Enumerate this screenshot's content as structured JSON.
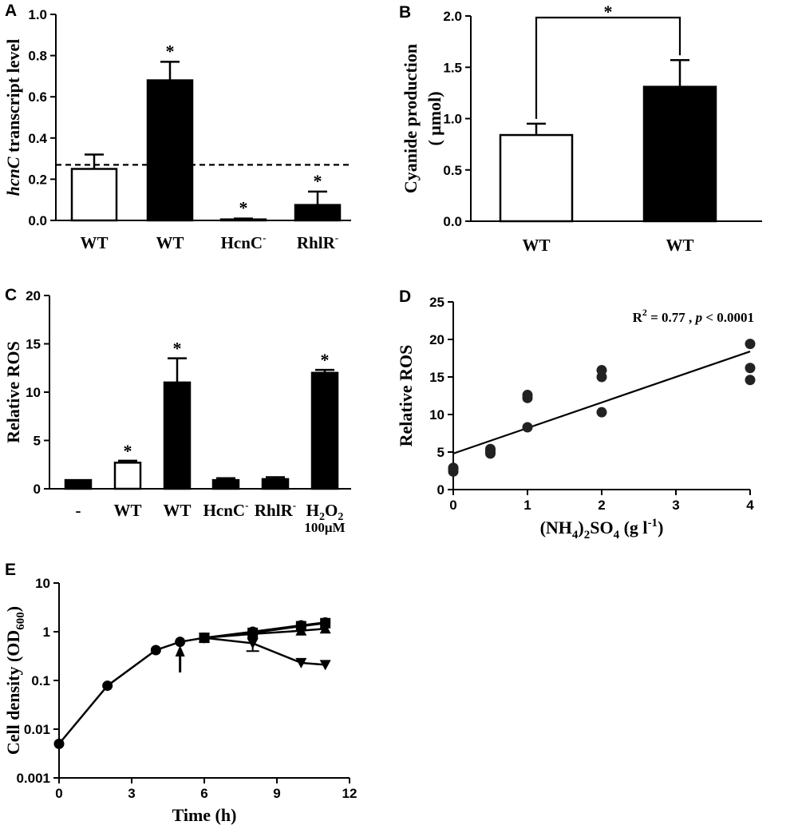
{
  "chart_data": [
    {
      "panel": "A",
      "type": "bar",
      "ylabel_italic": "hcnC",
      "ylabel_rest": " transcript level",
      "ylim": [
        0,
        1.0
      ],
      "yticks": [
        "0.0",
        "0.2",
        "0.4",
        "0.6",
        "0.8",
        "1.0"
      ],
      "reference_line": 0.27,
      "bars": [
        {
          "label": "WT",
          "sup": "",
          "value": 0.25,
          "error": 0.07,
          "fill": "white",
          "star": false
        },
        {
          "label": "WT",
          "sup": "",
          "value": 0.68,
          "error": 0.09,
          "fill": "black",
          "star": true
        },
        {
          "label": "HcnC",
          "sup": "-",
          "value": 0.005,
          "error": 0.004,
          "fill": "black",
          "star": true
        },
        {
          "label": "RhlR",
          "sup": "-",
          "value": 0.075,
          "error": 0.065,
          "fill": "black",
          "star": true
        }
      ]
    },
    {
      "panel": "B",
      "type": "bar",
      "ylabel_line1": "Cyanide production",
      "ylabel_line2": "( μmol)",
      "ylim": [
        0,
        2.0
      ],
      "yticks": [
        "0.0",
        "0.5",
        "1.0",
        "1.5",
        "2.0"
      ],
      "bars": [
        {
          "label": "WT",
          "value": 0.84,
          "error": 0.11,
          "fill": "white"
        },
        {
          "label": "WT",
          "value": 1.31,
          "error": 0.26,
          "fill": "black"
        }
      ],
      "comparison_star": "*"
    },
    {
      "panel": "C",
      "type": "bar",
      "ylabel": "Relative ROS",
      "ylim": [
        0,
        20
      ],
      "yticks": [
        "0",
        "5",
        "10",
        "15",
        "20"
      ],
      "bars": [
        {
          "label": "-",
          "sup": "",
          "value": 0.9,
          "error": 0.0,
          "fill": "black",
          "star": false
        },
        {
          "label": "WT",
          "sup": "",
          "value": 2.7,
          "error": 0.2,
          "fill": "white",
          "star": true
        },
        {
          "label": "WT",
          "sup": "",
          "value": 11.0,
          "error": 2.5,
          "fill": "black",
          "star": true
        },
        {
          "label": "HcnC",
          "sup": "-",
          "value": 0.9,
          "error": 0.2,
          "fill": "black",
          "star": false
        },
        {
          "label": "RhlR",
          "sup": "-",
          "value": 1.0,
          "error": 0.2,
          "fill": "black",
          "star": false
        },
        {
          "label": "H",
          "sub_label": "2",
          "label2": "O",
          "sub_label2": "2",
          "value": 12.0,
          "error": 0.3,
          "fill": "black",
          "star": true,
          "note": "100μM"
        }
      ]
    },
    {
      "panel": "D",
      "type": "scatter",
      "ylabel": "Relative ROS",
      "xlabel_parts": [
        "(NH",
        "4",
        ")",
        "2",
        "SO",
        "4",
        " (g l",
        "-1",
        ")"
      ],
      "xlim": [
        0,
        4
      ],
      "ylim": [
        0,
        25
      ],
      "xticks": [
        0,
        1,
        2,
        3,
        4
      ],
      "yticks": [
        0,
        5,
        10,
        15,
        20,
        25
      ],
      "annotation_r2": "R",
      "annotation_r2_sup": "2",
      "annotation_r2_rest": " = 0.77 ,",
      "annotation_p": "p",
      "annotation_p_rest": " < 0.0001",
      "points": [
        [
          0,
          2.4
        ],
        [
          0,
          2.7
        ],
        [
          0,
          2.9
        ],
        [
          0.5,
          4.8
        ],
        [
          0.5,
          5.1
        ],
        [
          0.5,
          5.4
        ],
        [
          1,
          8.3
        ],
        [
          1,
          12.2
        ],
        [
          1,
          12.6
        ],
        [
          2,
          10.3
        ],
        [
          2,
          15.0
        ],
        [
          2,
          15.9
        ],
        [
          4,
          14.6
        ],
        [
          4,
          16.2
        ],
        [
          4,
          19.4
        ]
      ],
      "fit": {
        "intercept": 4.8,
        "slope": 3.4
      }
    },
    {
      "panel": "E",
      "type": "line",
      "ylabel_main": "Cell density (OD",
      "ylabel_sub": "600",
      "ylabel_end": ")",
      "xlabel": "Time (h)",
      "xlim": [
        0,
        12
      ],
      "ylim": [
        0.001,
        10
      ],
      "yscale": "log",
      "xticks": [
        0,
        3,
        6,
        9,
        12
      ],
      "yticks": [
        {
          "v": 0.001,
          "t": "0.001"
        },
        {
          "v": 0.01,
          "t": "0.01"
        },
        {
          "v": 0.1,
          "t": "0.1"
        },
        {
          "v": 1,
          "t": "1"
        },
        {
          "v": 10,
          "t": "10"
        }
      ],
      "arrow_time": 5,
      "series": [
        {
          "name": "growth",
          "marker": "circle",
          "x": [
            0,
            2,
            4,
            5,
            6
          ],
          "y": [
            0.005,
            0.078,
            0.42,
            0.62,
            0.75
          ],
          "err": []
        },
        {
          "name": "circle-late",
          "marker": "circle",
          "x": [
            6,
            8,
            10,
            11
          ],
          "y": [
            0.75,
            1.0,
            1.35,
            1.55
          ],
          "err": []
        },
        {
          "name": "square",
          "marker": "square",
          "x": [
            6,
            8,
            10,
            11
          ],
          "y": [
            0.75,
            0.95,
            1.3,
            1.5
          ],
          "err": []
        },
        {
          "name": "triangle-up",
          "marker": "triangle-up",
          "x": [
            6,
            8,
            10,
            11
          ],
          "y": [
            0.75,
            0.9,
            1.05,
            1.15
          ],
          "err": []
        },
        {
          "name": "triangle-down",
          "marker": "triangle-down",
          "x": [
            6,
            8,
            10,
            11
          ],
          "y": [
            0.75,
            0.58,
            0.23,
            0.21
          ],
          "err": [
            0,
            0.18,
            0,
            0
          ]
        }
      ]
    }
  ]
}
